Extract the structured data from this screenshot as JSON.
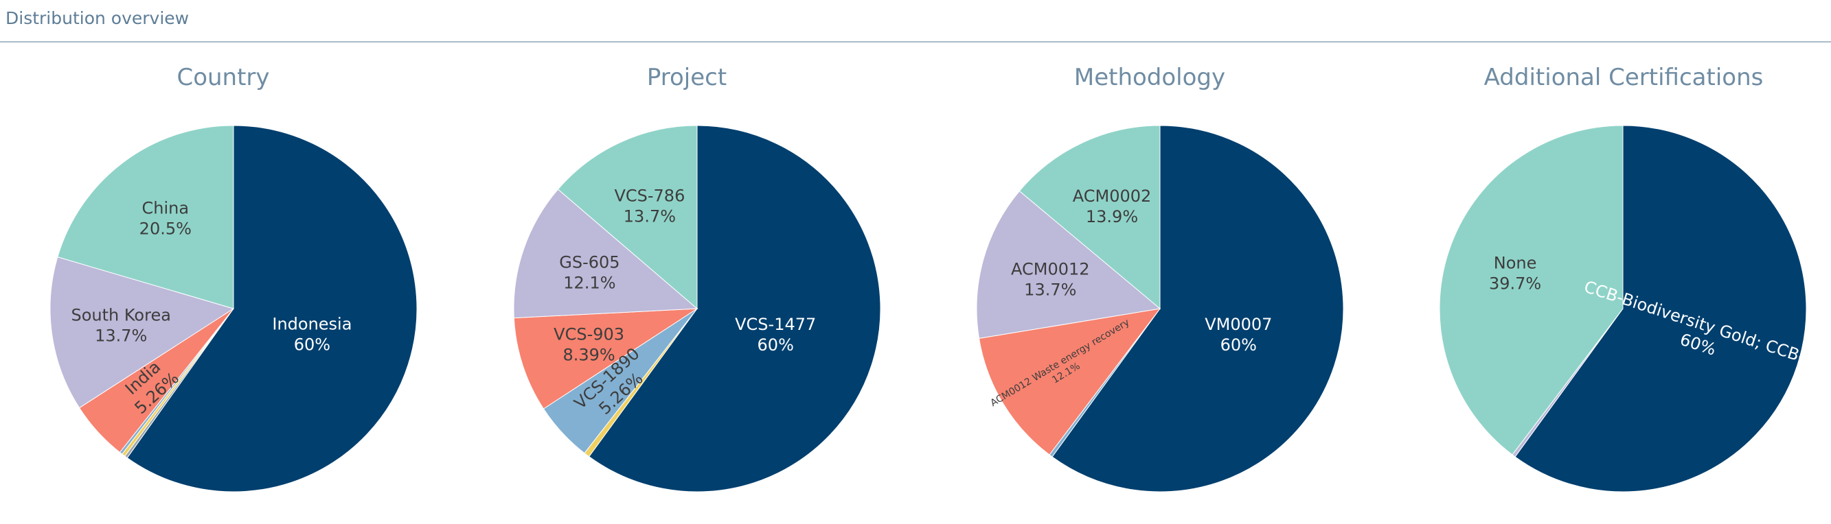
{
  "header": {
    "title": "Distribution overview"
  },
  "colors": {
    "navy": "#003f6e",
    "teal": "#8fd3c8",
    "lavender": "#bdb9d9",
    "salmon": "#f7826f",
    "steel": "#82b0d2",
    "gold": "#f0d060",
    "grey": "#9aa5ad",
    "label_dark": "#3d3d3d",
    "label_light": "#ffffff"
  },
  "chart_data": [
    {
      "type": "pie",
      "title": "Country",
      "slices": [
        {
          "label": "Indonesia",
          "pct_text": "60%",
          "value": 60.0,
          "color": "#003f6e",
          "label_color": "#ffffff"
        },
        {
          "label": "",
          "pct_text": "",
          "value": 0.25,
          "color": "#9aa5ad"
        },
        {
          "label": "",
          "pct_text": "",
          "value": 0.3,
          "color": "#f0d060"
        },
        {
          "label": "",
          "pct_text": "",
          "value": 0.25,
          "color": "#82b0d2"
        },
        {
          "label": "India",
          "pct_text": "5.26%",
          "value": 5.26,
          "color": "#f7826f",
          "label_color": "#3d3d3d",
          "rotate": true
        },
        {
          "label": "South Korea",
          "pct_text": "13.7%",
          "value": 13.7,
          "color": "#bdb9d9",
          "label_color": "#3d3d3d"
        },
        {
          "label": "China",
          "pct_text": "20.5%",
          "value": 20.5,
          "color": "#8fd3c8",
          "label_color": "#3d3d3d"
        }
      ]
    },
    {
      "type": "pie",
      "title": "Project",
      "slices": [
        {
          "label": "VCS-1477",
          "pct_text": "60%",
          "value": 60.0,
          "color": "#003f6e",
          "label_color": "#ffffff"
        },
        {
          "label": "",
          "pct_text": "",
          "value": 0.5,
          "color": "#f0d060"
        },
        {
          "label": "VCS-1890",
          "pct_text": "5.26%",
          "value": 5.26,
          "color": "#82b0d2",
          "label_color": "#3d3d3d",
          "rotate": true
        },
        {
          "label": "VCS-903",
          "pct_text": "8.39%",
          "value": 8.39,
          "color": "#f7826f",
          "label_color": "#3d3d3d"
        },
        {
          "label": "GS-605",
          "pct_text": "12.1%",
          "value": 12.1,
          "color": "#bdb9d9",
          "label_color": "#3d3d3d"
        },
        {
          "label": "VCS-786",
          "pct_text": "13.7%",
          "value": 13.7,
          "color": "#8fd3c8",
          "label_color": "#3d3d3d"
        }
      ]
    },
    {
      "type": "pie",
      "title": "Methodology",
      "slices": [
        {
          "label": "VM0007",
          "pct_text": "60%",
          "value": 60.0,
          "color": "#003f6e",
          "label_color": "#ffffff"
        },
        {
          "label": "",
          "pct_text": "",
          "value": 0.3,
          "color": "#82b0d2"
        },
        {
          "label": "ACM0012 Waste energy recovery",
          "pct_text": "12.1%",
          "value": 12.1,
          "color": "#f7826f",
          "label_color": "#3d3d3d",
          "rotate": true,
          "small": true
        },
        {
          "label": "ACM0012",
          "pct_text": "13.7%",
          "value": 13.7,
          "color": "#bdb9d9",
          "label_color": "#3d3d3d"
        },
        {
          "label": "ACM0002",
          "pct_text": "13.9%",
          "value": 13.9,
          "color": "#8fd3c8",
          "label_color": "#3d3d3d"
        }
      ]
    },
    {
      "type": "pie",
      "title": "Additional Certifications",
      "slices": [
        {
          "label": "CCB-Biodiversity Gold; CCB-Cli",
          "pct_text": "60%",
          "value": 60.0,
          "color": "#003f6e",
          "label_color": "#ffffff",
          "rotate": true
        },
        {
          "label": "",
          "pct_text": "",
          "value": 0.3,
          "color": "#bdb9d9"
        },
        {
          "label": "None",
          "pct_text": "39.7%",
          "value": 39.7,
          "color": "#8fd3c8",
          "label_color": "#3d3d3d"
        }
      ]
    }
  ]
}
